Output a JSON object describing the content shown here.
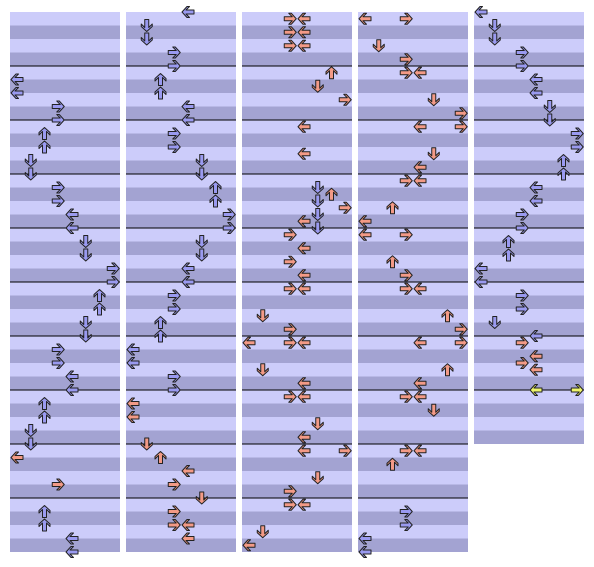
{
  "measures_per_column": [
    10,
    10,
    10,
    10,
    8
  ],
  "beats_per_measure": 4,
  "note_groups": [
    {
      "color": "#9a9af0",
      "notes": [
        [
          5,
          0
        ],
        [
          6,
          0
        ],
        [
          7,
          3
        ],
        [
          8,
          3
        ],
        [
          9,
          2
        ],
        [
          10,
          2
        ],
        [
          11,
          1
        ],
        [
          12,
          1
        ],
        [
          13,
          3
        ],
        [
          14,
          3
        ],
        [
          15,
          4
        ],
        [
          16,
          4
        ],
        [
          17,
          5
        ],
        [
          18,
          5
        ],
        [
          19,
          7
        ],
        [
          20,
          7
        ],
        [
          21,
          6
        ],
        [
          22,
          6
        ],
        [
          23,
          5
        ],
        [
          24,
          5
        ],
        [
          25,
          3
        ],
        [
          26,
          3
        ],
        [
          27,
          4
        ],
        [
          28,
          4
        ],
        [
          29,
          2
        ],
        [
          30,
          2
        ],
        [
          31,
          1
        ],
        [
          32,
          1
        ],
        [
          37,
          2
        ],
        [
          38,
          2
        ],
        [
          39,
          4
        ],
        [
          40,
          4
        ],
        [
          41,
          1
        ],
        [
          42,
          1
        ],
        [
          43,
          3
        ],
        [
          44,
          3
        ],
        [
          45,
          2
        ],
        [
          46,
          2
        ],
        [
          47,
          4
        ],
        [
          48,
          4
        ],
        [
          49,
          3
        ],
        [
          50,
          3
        ],
        [
          51,
          5
        ],
        [
          52,
          5
        ],
        [
          53,
          6
        ],
        [
          54,
          6
        ],
        [
          55,
          7
        ],
        [
          56,
          7
        ],
        [
          57,
          5
        ],
        [
          58,
          5
        ],
        [
          59,
          4
        ],
        [
          60,
          4
        ],
        [
          61,
          3
        ],
        [
          62,
          3
        ],
        [
          63,
          2
        ],
        [
          64,
          2
        ],
        [
          65,
          0
        ],
        [
          66,
          0
        ],
        [
          67,
          3
        ],
        [
          68,
          3
        ],
        [
          93,
          5
        ],
        [
          94,
          5
        ],
        [
          95,
          5
        ],
        [
          96,
          5
        ],
        [
          157,
          3
        ],
        [
          158,
          3
        ],
        [
          159,
          0
        ],
        [
          160,
          0
        ],
        [
          161,
          1
        ],
        [
          162,
          1
        ],
        [
          163,
          3
        ],
        [
          164,
          3
        ],
        [
          165,
          4
        ],
        [
          166,
          4
        ],
        [
          167,
          5
        ],
        [
          168,
          5
        ],
        [
          169,
          7
        ],
        [
          170,
          7
        ],
        [
          171,
          6
        ],
        [
          172,
          6
        ],
        [
          173,
          4
        ],
        [
          174,
          4
        ],
        [
          175,
          3
        ],
        [
          176,
          3
        ],
        [
          177,
          2
        ],
        [
          178,
          2
        ],
        [
          179,
          0
        ],
        [
          180,
          0
        ],
        [
          181,
          3
        ],
        [
          182,
          3
        ],
        [
          183,
          1
        ],
        [
          184,
          4
        ]
      ]
    },
    {
      "color": "#f39a86",
      "notes": [
        [
          33,
          0
        ],
        [
          35,
          3
        ],
        [
          69,
          0
        ],
        [
          70,
          0
        ],
        [
          72,
          1
        ],
        [
          73,
          2
        ],
        [
          74,
          4
        ],
        [
          75,
          3
        ],
        [
          76,
          5
        ],
        [
          77,
          3
        ],
        [
          78,
          3
        ],
        [
          78,
          4
        ],
        [
          79,
          4
        ],
        [
          80.5,
          3
        ],
        [
          80.5,
          4
        ],
        [
          81.5,
          3
        ],
        [
          81.5,
          4
        ],
        [
          82.5,
          3
        ],
        [
          82.5,
          4
        ],
        [
          84.5,
          6
        ],
        [
          85.5,
          5
        ],
        [
          86.5,
          7
        ],
        [
          88.5,
          4
        ],
        [
          90.5,
          4
        ],
        [
          93.5,
          6
        ],
        [
          94.5,
          7
        ],
        [
          95.5,
          4
        ],
        [
          96.5,
          3
        ],
        [
          97.5,
          4
        ],
        [
          98.5,
          3
        ],
        [
          99.5,
          4
        ],
        [
          100.5,
          3
        ],
        [
          100.5,
          4
        ],
        [
          102.5,
          1
        ],
        [
          103.5,
          3
        ],
        [
          104.5,
          0
        ],
        [
          104.5,
          3
        ],
        [
          104.5,
          4
        ],
        [
          106.5,
          1
        ],
        [
          107.5,
          4
        ],
        [
          108.5,
          3
        ],
        [
          108.5,
          4
        ],
        [
          110.5,
          5
        ],
        [
          111.5,
          4
        ],
        [
          112.5,
          4
        ],
        [
          112.5,
          7
        ],
        [
          114.5,
          5
        ],
        [
          115.5,
          3
        ],
        [
          116.5,
          3
        ],
        [
          116.5,
          4
        ],
        [
          118.5,
          1
        ],
        [
          119.5,
          0
        ],
        [
          120.5,
          0
        ],
        [
          120.5,
          3
        ],
        [
          122.5,
          1
        ],
        [
          123.5,
          3
        ],
        [
          124.5,
          3
        ],
        [
          124.5,
          4
        ],
        [
          126.5,
          5
        ],
        [
          127.5,
          7
        ],
        [
          128.5,
          7
        ],
        [
          128.5,
          4
        ],
        [
          130.5,
          5
        ],
        [
          131.5,
          4
        ],
        [
          132.5,
          3
        ],
        [
          132.5,
          4
        ],
        [
          134.5,
          2
        ],
        [
          135.5,
          0
        ],
        [
          136.5,
          0
        ],
        [
          136.5,
          3
        ],
        [
          138.5,
          2
        ],
        [
          139.5,
          3
        ],
        [
          140.5,
          3
        ],
        [
          140.5,
          4
        ],
        [
          142.5,
          6
        ],
        [
          143.5,
          7
        ],
        [
          144.5,
          4
        ],
        [
          144.5,
          7
        ],
        [
          146.5,
          6
        ],
        [
          147.5,
          4
        ],
        [
          148.5,
          3
        ],
        [
          148.5,
          4
        ],
        [
          149.5,
          5
        ],
        [
          152.5,
          3
        ],
        [
          152.5,
          4
        ],
        [
          153.5,
          2
        ],
        [
          184.5,
          3
        ],
        [
          185.5,
          4
        ],
        [
          186,
          3
        ],
        [
          186.5,
          4
        ]
      ]
    },
    {
      "color": "#eef56a",
      "notes": [
        [
          188,
          4
        ],
        [
          188,
          7
        ]
      ]
    }
  ]
}
